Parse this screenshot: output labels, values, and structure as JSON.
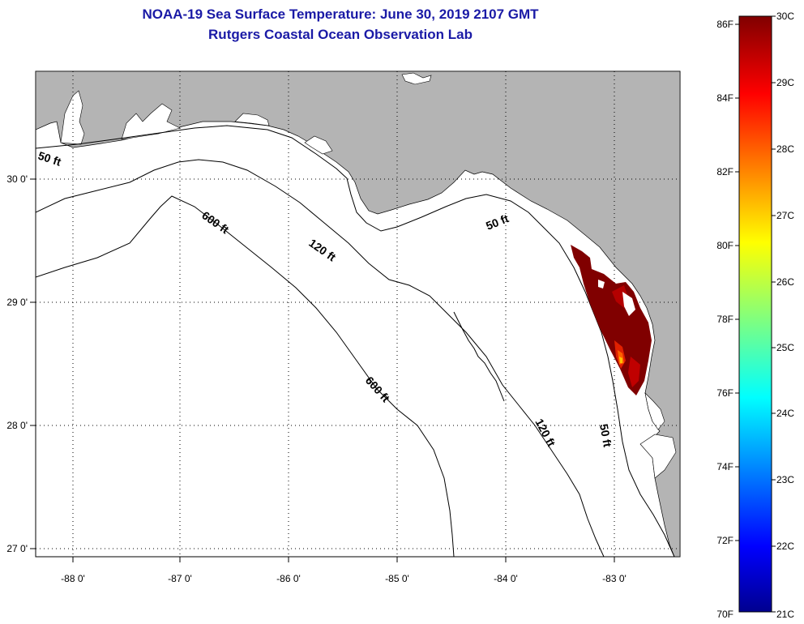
{
  "header": {
    "title_line1": "NOAA-19 Sea Surface Temperature:  June 30, 2019 2107 GMT",
    "title_line2": "Rutgers Coastal Ocean Observation Lab"
  },
  "axes": {
    "lon_labels": [
      "-88 0'",
      "-87 0'",
      "-86 0'",
      "-85 0'",
      "-84 0'",
      "-83 0'"
    ],
    "lat_labels": [
      "30 0'",
      "29 0'",
      "28 0'",
      "27 0'"
    ],
    "lon_range": [
      -88.35,
      -82.45
    ],
    "lat_range": [
      26.98,
      30.85
    ],
    "grid": "dotted"
  },
  "contours": [
    {
      "label": "50 ft"
    },
    {
      "label": "600 ft"
    },
    {
      "label": "120 ft"
    },
    {
      "label": "50 ft"
    },
    {
      "label": "600 ft"
    },
    {
      "label": "120 ft"
    },
    {
      "label": "50 ft"
    }
  ],
  "colorbar": {
    "fahrenheit_labels": [
      "86F",
      "84F",
      "82F",
      "80F",
      "78F",
      "76F",
      "74F",
      "72F",
      "70F"
    ],
    "celsius_labels": [
      "30C",
      "29C",
      "28C",
      "27C",
      "26C",
      "25C",
      "24C",
      "23C",
      "22C",
      "21C"
    ],
    "range_c": [
      21,
      30
    ]
  },
  "colors": {
    "land": "#b4b4b4",
    "water_no_data": "#ffffff",
    "title": "#1a1aa6",
    "sst_hot": "#800000"
  }
}
